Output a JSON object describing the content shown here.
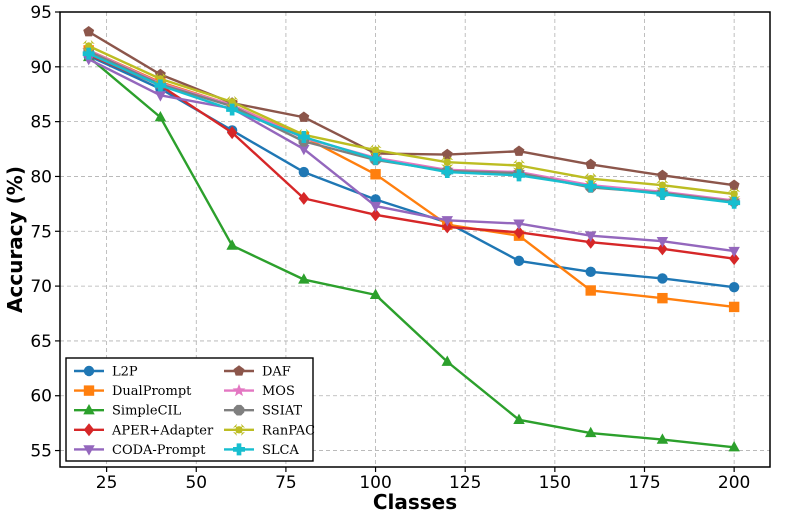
{
  "chart_data": {
    "type": "line",
    "title": "",
    "xlabel": "Classes",
    "ylabel": "Accuracy (%)",
    "xlim": [
      12,
      210
    ],
    "ylim": [
      53.5,
      95
    ],
    "xticks": [
      25,
      50,
      75,
      100,
      125,
      150,
      175,
      200
    ],
    "yticks": [
      55,
      60,
      65,
      70,
      75,
      80,
      85,
      90,
      95
    ],
    "grid": true,
    "legend_position": "bottom-left",
    "legend_columns": 2,
    "x": [
      20,
      40,
      60,
      80,
      100,
      120,
      140,
      160,
      180,
      200
    ],
    "series": [
      {
        "name": "L2P",
        "color": "#1f77b4",
        "marker": "circle",
        "values": [
          91.0,
          88.0,
          84.2,
          80.4,
          77.9,
          75.8,
          72.3,
          71.3,
          70.7,
          69.9
        ]
      },
      {
        "name": "DualPrompt",
        "color": "#ff7f0e",
        "marker": "square",
        "values": [
          91.5,
          88.6,
          86.5,
          83.6,
          80.2,
          75.6,
          74.6,
          69.6,
          68.9,
          68.1
        ]
      },
      {
        "name": "SimpleCIL",
        "color": "#2ca02c",
        "marker": "triangle-up",
        "values": [
          90.9,
          85.4,
          73.7,
          70.6,
          69.2,
          63.1,
          57.8,
          56.6,
          56.0,
          55.3
        ]
      },
      {
        "name": "APER+Adapter",
        "color": "#d62728",
        "marker": "diamond",
        "values": [
          91.1,
          88.3,
          84.0,
          78.0,
          76.5,
          75.4,
          74.9,
          74.0,
          73.4,
          72.5
        ]
      },
      {
        "name": "CODA-Prompt",
        "color": "#9467bd",
        "marker": "triangle-down",
        "values": [
          90.7,
          87.4,
          86.2,
          82.5,
          77.3,
          76.0,
          75.7,
          74.6,
          74.1,
          73.2
        ]
      },
      {
        "name": "DAF",
        "color": "#8c564b",
        "marker": "pentagon",
        "values": [
          93.2,
          89.3,
          86.7,
          85.4,
          82.1,
          82.0,
          82.3,
          81.1,
          80.1,
          79.2
        ]
      },
      {
        "name": "MOS",
        "color": "#e377c2",
        "marker": "star",
        "values": [
          91.5,
          88.5,
          86.5,
          83.5,
          81.7,
          80.6,
          80.4,
          79.2,
          78.6,
          77.8
        ]
      },
      {
        "name": "SSIAT",
        "color": "#7f7f7f",
        "marker": "octagon",
        "values": [
          91.4,
          88.4,
          86.4,
          83.2,
          81.5,
          80.5,
          80.3,
          79.0,
          78.5,
          77.7
        ]
      },
      {
        "name": "RanPAC",
        "color": "#bcbd22",
        "marker": "x",
        "values": [
          91.9,
          88.9,
          86.8,
          83.8,
          82.4,
          81.3,
          81.0,
          79.8,
          79.2,
          78.4
        ]
      },
      {
        "name": "SLCA",
        "color": "#17becf",
        "marker": "plus",
        "values": [
          91.2,
          88.3,
          86.1,
          83.6,
          81.6,
          80.4,
          80.1,
          79.1,
          78.4,
          77.6
        ]
      }
    ]
  }
}
